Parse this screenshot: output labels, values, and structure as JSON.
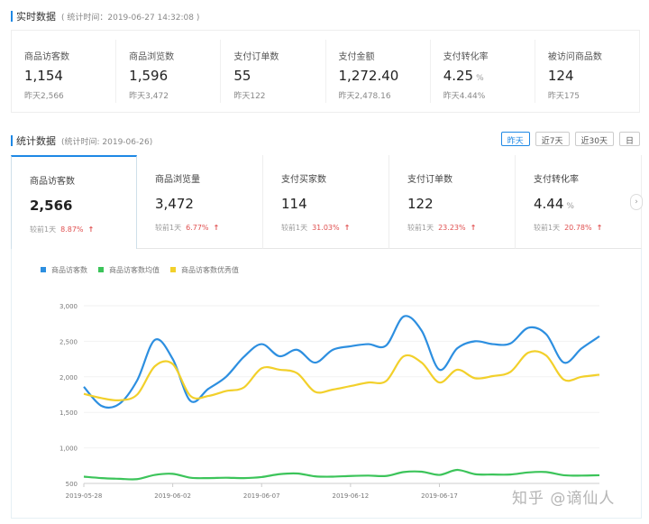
{
  "realtime": {
    "title": "实时数据",
    "subtitle": "( 统计时间：2019-06-27 14:32:08 )",
    "metrics": [
      {
        "label": "商品访客数",
        "value": "1,154",
        "unit": "",
        "prev": "昨天2,566"
      },
      {
        "label": "商品浏览数",
        "value": "1,596",
        "unit": "",
        "prev": "昨天3,472"
      },
      {
        "label": "支付订单数",
        "value": "55",
        "unit": "",
        "prev": "昨天122"
      },
      {
        "label": "支付金额",
        "value": "1,272.40",
        "unit": "",
        "prev": "昨天2,478.16"
      },
      {
        "label": "支付转化率",
        "value": "4.25",
        "unit": "%",
        "prev": "昨天4.44%"
      },
      {
        "label": "被访问商品数",
        "value": "124",
        "unit": "",
        "prev": "昨天175"
      }
    ]
  },
  "stats": {
    "title": "统计数据",
    "subtitle": "(统计时间: 2019-06-26)",
    "range_buttons": [
      "昨天",
      "近7天",
      "近30天",
      "日"
    ],
    "active_range": "昨天",
    "tabs": [
      {
        "label": "商品访客数",
        "value": "2,566",
        "unit": "",
        "cmp_label": "较前1天",
        "pct": "8.87%",
        "trend": "up"
      },
      {
        "label": "商品浏览量",
        "value": "3,472",
        "unit": "",
        "cmp_label": "较前1天",
        "pct": "6.77%",
        "trend": "up"
      },
      {
        "label": "支付买家数",
        "value": "114",
        "unit": "",
        "cmp_label": "较前1天",
        "pct": "31.03%",
        "trend": "up"
      },
      {
        "label": "支付订单数",
        "value": "122",
        "unit": "",
        "cmp_label": "较前1天",
        "pct": "23.23%",
        "trend": "up"
      },
      {
        "label": "支付转化率",
        "value": "4.44",
        "unit": "%",
        "cmp_label": "较前1天",
        "pct": "20.78%",
        "trend": "up"
      }
    ],
    "next_icon": "chevron-right-icon"
  },
  "chart_data": {
    "type": "line",
    "x": [
      "2019-05-28",
      "2019-05-29",
      "2019-05-30",
      "2019-05-31",
      "2019-06-01",
      "2019-06-02",
      "2019-06-03",
      "2019-06-04",
      "2019-06-05",
      "2019-06-06",
      "2019-06-07",
      "2019-06-08",
      "2019-06-09",
      "2019-06-10",
      "2019-06-11",
      "2019-06-12",
      "2019-06-13",
      "2019-06-14",
      "2019-06-15",
      "2019-06-16",
      "2019-06-17",
      "2019-06-18",
      "2019-06-19",
      "2019-06-20",
      "2019-06-21",
      "2019-06-22",
      "2019-06-23",
      "2019-06-24",
      "2019-06-25",
      "2019-06-26"
    ],
    "xticks": [
      "2019-05-28",
      "2019-06-02",
      "2019-06-07",
      "2019-06-12",
      "2019-06-17"
    ],
    "yticks": [
      "500",
      "1,000",
      "1,500",
      "2,000",
      "2,500",
      "3,000"
    ],
    "ylim": [
      500,
      3000
    ],
    "grid": true,
    "legend_position": "top-left",
    "smooth": true,
    "series": [
      {
        "name": "商品访客数",
        "color": "#2d8fe0",
        "values": [
          1860,
          1590,
          1620,
          1950,
          2520,
          2250,
          1660,
          1830,
          2000,
          2280,
          2460,
          2290,
          2380,
          2200,
          2380,
          2430,
          2460,
          2440,
          2850,
          2650,
          2100,
          2400,
          2500,
          2460,
          2470,
          2690,
          2600,
          2200,
          2400,
          2570
        ]
      },
      {
        "name": "商品访客数均值",
        "color": "#3cc45a",
        "values": [
          595,
          575,
          565,
          560,
          620,
          635,
          580,
          575,
          580,
          575,
          590,
          630,
          640,
          600,
          595,
          605,
          610,
          605,
          660,
          665,
          620,
          690,
          630,
          625,
          625,
          655,
          660,
          615,
          610,
          615
        ]
      },
      {
        "name": "商品访客数优秀值",
        "color": "#f2d02b",
        "values": [
          1760,
          1700,
          1670,
          1750,
          2150,
          2180,
          1730,
          1730,
          1800,
          1850,
          2120,
          2100,
          2050,
          1790,
          1820,
          1870,
          1920,
          1940,
          2290,
          2200,
          1920,
          2100,
          1980,
          2010,
          2070,
          2340,
          2300,
          1960,
          2000,
          2030
        ]
      }
    ]
  },
  "watermark": "知乎 @谪仙人"
}
